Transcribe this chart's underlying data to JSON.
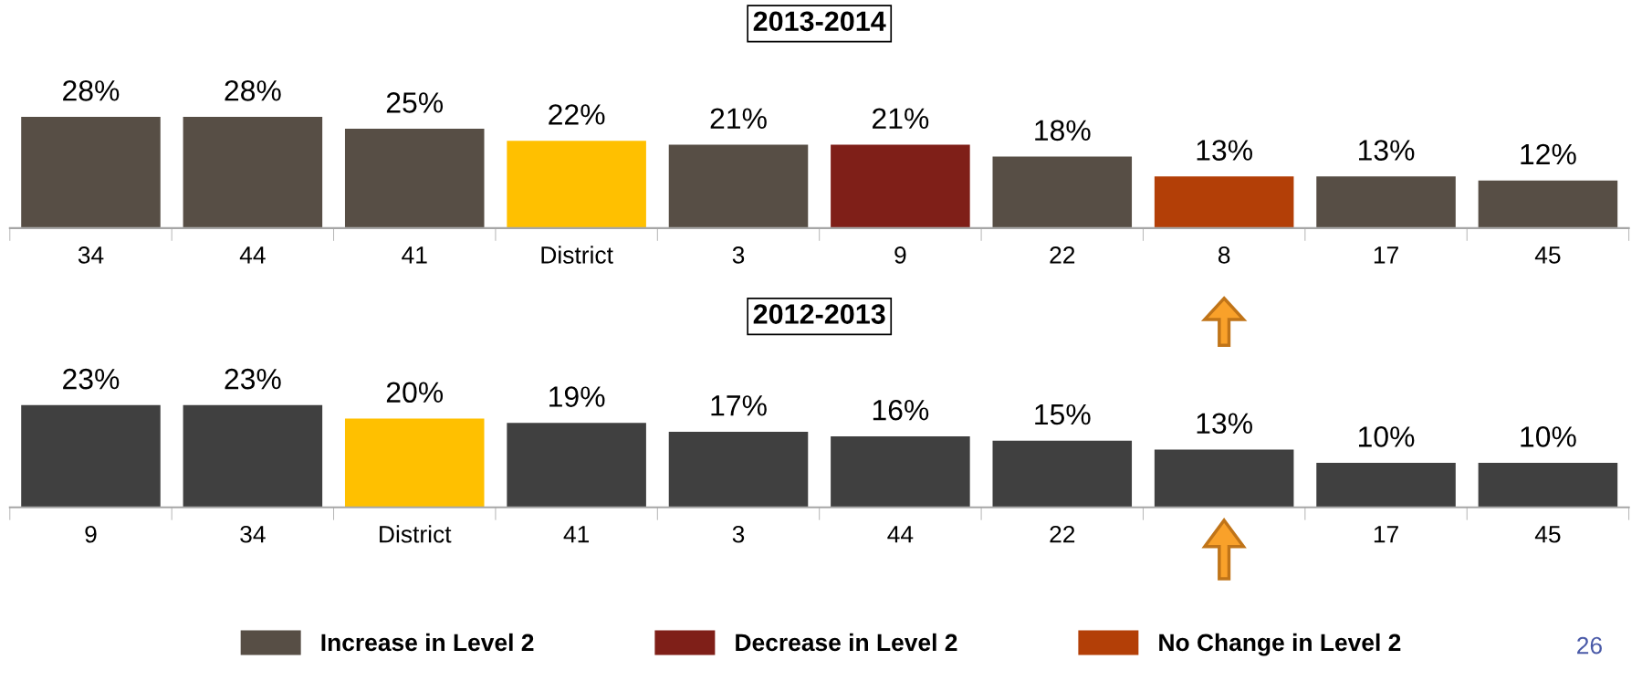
{
  "chart_data": [
    {
      "type": "bar",
      "title": "2013-2014",
      "legend": "bottom",
      "categories": [
        "34",
        "44",
        "41",
        "District",
        "3",
        "9",
        "22",
        "8",
        "17",
        "45"
      ],
      "series": [
        {
          "name": "Increase in Level 2",
          "color": "#574e45",
          "values": [
            28,
            28,
            25,
            null,
            21,
            null,
            18,
            null,
            13,
            12
          ],
          "value_labels": [
            "28%",
            "28%",
            "25%",
            null,
            "21%",
            null,
            "18%",
            null,
            "13%",
            "12%"
          ]
        },
        {
          "name": "Decrease in Level 2",
          "color": "#7f1f18",
          "values": [
            null,
            null,
            null,
            null,
            null,
            21,
            null,
            null,
            null,
            null
          ],
          "value_labels": [
            null,
            null,
            null,
            null,
            null,
            "21%",
            null,
            null,
            null,
            null
          ]
        },
        {
          "name": "No Change in Level 2",
          "color": "#b33f07",
          "values": [
            null,
            null,
            null,
            null,
            null,
            null,
            null,
            13,
            null,
            null
          ],
          "value_labels": [
            null,
            null,
            null,
            null,
            null,
            null,
            null,
            "13%",
            null,
            null
          ]
        },
        {
          "color": "#ffc000",
          "values": [
            null,
            null,
            null,
            22,
            null,
            null,
            null,
            null,
            null,
            null
          ],
          "value_labels": [
            null,
            null,
            null,
            "22%",
            null,
            null,
            null,
            null,
            null,
            null
          ]
        }
      ]
    },
    {
      "type": "bar",
      "title": "2012-2013",
      "categories": [
        "9",
        "34",
        "District",
        "41",
        "3",
        "44",
        "22",
        null,
        "17",
        "45"
      ],
      "values": [
        23,
        23,
        20,
        19,
        17,
        16,
        15,
        13,
        10,
        10
      ],
      "value_labels": [
        "23%",
        "23%",
        "20%",
        "19%",
        "17%",
        "16%",
        "15%",
        "13%",
        "10%",
        "10%"
      ],
      "colors": [
        "#404040",
        "#404040",
        "#ffc000",
        "#404040",
        "#404040",
        "#404040",
        "#404040",
        "#404040",
        "#404040",
        "#404040"
      ],
      "annotations": [
        "26"
      ]
    }
  ]
}
